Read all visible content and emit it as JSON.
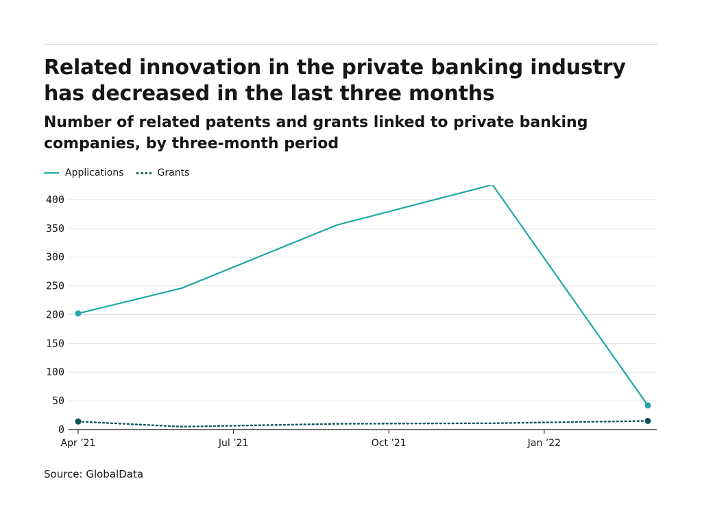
{
  "title": "Related innovation in the private banking industry has decreased in the last three months",
  "subtitle": "Number of related patents and grants linked to private banking companies, by three-month period",
  "source": "Source: GlobalData",
  "colors": {
    "applications": "#1fa7a7",
    "grants": "#0f5257",
    "grid": "#e0e0e0",
    "axis": "#161616"
  },
  "chart_data": {
    "type": "line",
    "title": "Related innovation in the private banking industry has decreased in the last three months",
    "subtitle": "Number of related patents and grants linked to private banking companies, by three-month period",
    "x": [
      "Apr 2021",
      "Jun 2021",
      "Sep 2021",
      "Dec 2021",
      "Mar 2022"
    ],
    "x_ticks": [
      "Apr ’21",
      "Jul ’21",
      "Oct ’21",
      "Jan ’22"
    ],
    "y_ticks": [
      0,
      50,
      100,
      150,
      200,
      250,
      300,
      350,
      400
    ],
    "ylim": [
      0,
      425
    ],
    "xlabel": "",
    "ylabel": "",
    "grid": true,
    "legend": "top-left",
    "series": [
      {
        "name": "Applications",
        "style": "solid",
        "values": [
          202,
          246,
          356,
          426,
          42
        ]
      },
      {
        "name": "Grants",
        "style": "dotted",
        "values": [
          14,
          5,
          10,
          11,
          15
        ]
      }
    ]
  }
}
